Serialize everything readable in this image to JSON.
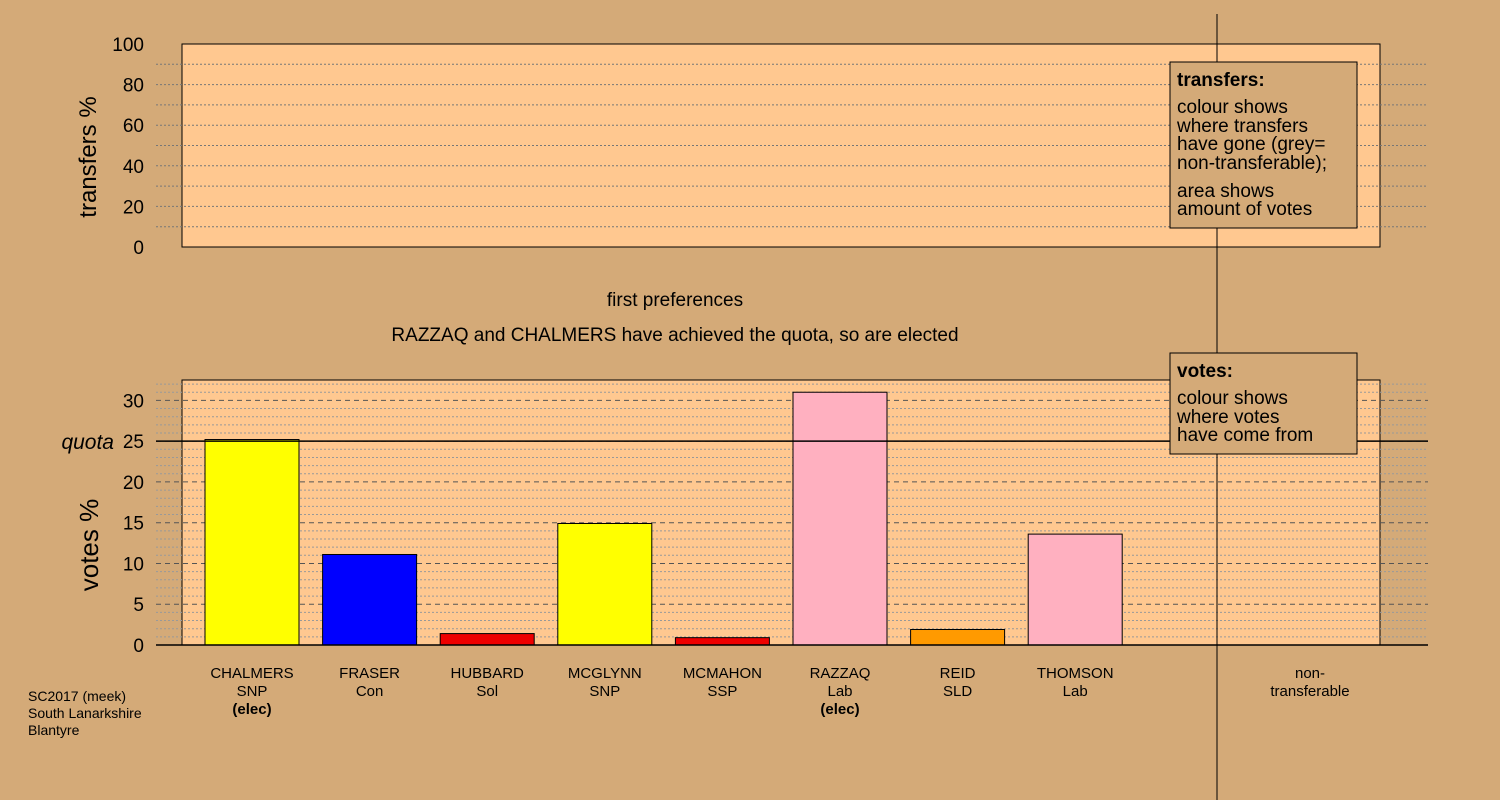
{
  "colors": {
    "background": "#d4aa78",
    "plot_area": "#ffc890",
    "legend_box": "#d4aa78",
    "SNP": "#ffff00",
    "Con": "#0000ff",
    "Sol": "#ee0000",
    "SSP": "#ee0000",
    "Lab": "#ffb0c0",
    "SLD": "#ff9a00"
  },
  "chart_data": [
    {
      "type": "bar",
      "panel": "transfers",
      "ylabel": "transfers %",
      "ylim": [
        0,
        100
      ],
      "yticks": [
        0,
        20,
        40,
        60,
        80,
        100
      ],
      "values": [],
      "grid": true
    },
    {
      "type": "bar",
      "panel": "votes",
      "title": "first preferences",
      "subtitle": "RAZZAQ and CHALMERS have achieved the quota, so are elected",
      "ylabel": "votes %",
      "ylim": [
        0,
        32.5
      ],
      "yticks": [
        0,
        5,
        10,
        15,
        20,
        25,
        30
      ],
      "quota": 25,
      "quota_label": "quota",
      "grid": true,
      "categories": [
        {
          "name": "CHALMERS",
          "party": "SNP",
          "note": "(elec)"
        },
        {
          "name": "FRASER",
          "party": "Con",
          "note": ""
        },
        {
          "name": "HUBBARD",
          "party": "Sol",
          "note": ""
        },
        {
          "name": "MCGLYNN",
          "party": "SNP",
          "note": ""
        },
        {
          "name": "MCMAHON",
          "party": "SSP",
          "note": ""
        },
        {
          "name": "RAZZAQ",
          "party": "Lab",
          "note": "(elec)"
        },
        {
          "name": "REID",
          "party": "SLD",
          "note": ""
        },
        {
          "name": "THOMSON",
          "party": "Lab",
          "note": ""
        }
      ],
      "values": [
        25.2,
        11.1,
        1.4,
        14.9,
        0.9,
        31.0,
        1.9,
        13.6
      ],
      "extra_category": {
        "line1": "non-",
        "line2": "transferable",
        "value": 0
      }
    }
  ],
  "legend_transfers": {
    "title": "transfers:",
    "lines1": [
      "colour shows",
      "where transfers",
      "have gone (grey=",
      "non-transferable);"
    ],
    "lines2": [
      "area shows",
      "amount of votes"
    ]
  },
  "legend_votes": {
    "title": "votes:",
    "lines": [
      "colour shows",
      "where votes",
      "have come from"
    ]
  },
  "footer": [
    "SC2017 (meek)",
    "South Lanarkshire",
    "Blantyre"
  ]
}
